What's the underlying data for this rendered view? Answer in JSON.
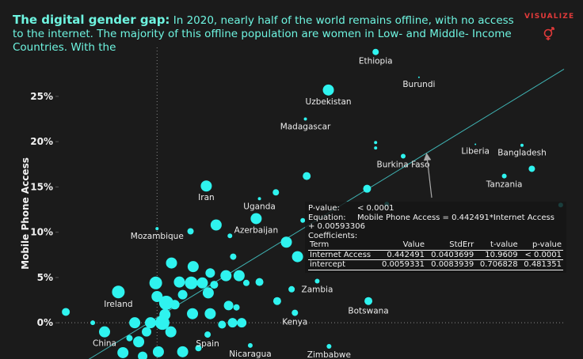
{
  "chart_data": {
    "type": "scatter",
    "title": "The digital gender gap:",
    "subtitle": "In 2020, nearly half of the world remains offline, with no access to the internet. The majority of this offline population are women in Low- and Middle- Income Countries. With the",
    "brand": "VISUALIZE",
    "y_label": "Mobile Phone Access",
    "color": "#2ff3ef",
    "xlim": [
      -15,
      62
    ],
    "ylim": [
      -4,
      30.4
    ],
    "yticks": [
      {
        "value": 0,
        "label": "0%"
      },
      {
        "value": 5,
        "label": "5%"
      },
      {
        "value": 10,
        "label": "10%"
      },
      {
        "value": 15,
        "label": "15%"
      },
      {
        "value": 20,
        "label": "20%"
      },
      {
        "value": 25,
        "label": "25%"
      }
    ],
    "reference_lines": {
      "x": 0,
      "y": 0
    },
    "x": [
      33.3,
      26.1,
      22.6,
      39.9,
      37.5,
      48.5,
      55.6,
      52.9,
      7.5,
      15.6,
      15.1,
      0.0,
      24.4,
      -5.9,
      32.2,
      21.0,
      -8.0,
      7.7,
      14.2,
      26.2,
      -13.9,
      -9.8,
      -3.4,
      -1.0,
      0.8,
      2.1,
      -1.6,
      -2.8,
      -4.2,
      -5.2,
      -2.2,
      0.2,
      3.9,
      6.3,
      -0.2,
      0.0,
      1.4,
      1.2,
      2.7,
      3.9,
      3.4,
      5.2,
      6.9,
      5.5,
      2.2,
      8.1,
      7.8,
      8.7,
      10.5,
      5.4,
      8.1,
      10.9,
      9.9,
      12.1,
      11.5,
      12.9,
      12.5,
      15.6,
      13.6,
      11.6,
      18.3,
      20.5,
      19.7,
      21.4,
      22.2,
      22.8,
      18.1,
      5.1,
      9.0,
      11.1,
      32.0,
      35.0,
      61.5,
      33.3,
      33.3,
      57.1
    ],
    "values": [
      29.9,
      25.7,
      22.5,
      27.1,
      18.4,
      19.7,
      19.6,
      16.2,
      15.1,
      13.7,
      11.5,
      10.4,
      4.6,
      3.4,
      2.4,
      1.1,
      -1.0,
      -1.3,
      -2.5,
      -2.6,
      1.2,
      0.0,
      0.0,
      0.0,
      0.0,
      -1.0,
      -1.0,
      -2.1,
      -1.7,
      -3.3,
      -3.7,
      -3.2,
      -3.2,
      -2.8,
      4.4,
      2.9,
      2.2,
      0.9,
      2.0,
      3.1,
      4.5,
      4.4,
      4.4,
      6.2,
      6.6,
      5.5,
      3.3,
      4.2,
      5.2,
      1.0,
      1.0,
      1.9,
      -0.2,
      1.7,
      0.0,
      0.0,
      5.2,
      4.5,
      4.4,
      7.3,
      2.4,
      3.7,
      8.9,
      7.3,
      11.3,
      16.2,
      14.4,
      10.1,
      10.8,
      9.6,
      14.8,
      13.1,
      13.0,
      19.3,
      19.9,
      17.0
    ],
    "sizes": [
      4,
      7,
      2,
      1,
      3,
      1,
      2,
      3,
      7,
      2,
      7,
      2,
      3,
      8,
      5,
      4,
      7,
      4,
      3,
      3,
      5,
      3,
      7,
      7,
      9,
      7,
      6,
      7,
      4,
      7,
      6,
      7,
      7,
      4,
      8,
      7,
      9,
      7,
      6,
      6,
      7,
      8,
      7,
      7,
      7,
      6,
      7,
      5,
      7,
      7,
      7,
      6,
      5,
      4,
      6,
      6,
      7,
      5,
      4,
      4,
      5,
      4,
      7,
      7,
      3,
      5,
      4,
      4,
      7,
      3,
      5,
      3,
      3,
      2,
      2,
      4
    ],
    "labels": [
      "Ethiopia",
      "Uzbekistan",
      "Madagascar",
      "Burundi",
      "Burkina Faso",
      "Liberia",
      "Bangladesh",
      "Tanzania",
      "Iran",
      "Uganda",
      "Azerbaijan",
      "Mozambique",
      "Zambia",
      "Ireland",
      "Botswana",
      "Kenya",
      "China",
      "Spain",
      "Nicaragua",
      "Zimbabwe",
      null,
      null,
      null,
      null,
      null,
      null,
      null,
      null,
      null,
      null,
      null,
      null,
      null,
      null,
      null,
      null,
      null,
      null,
      null,
      null,
      null,
      null,
      null,
      null,
      null,
      null,
      null,
      null,
      null,
      null,
      null,
      null,
      null,
      null,
      null,
      null,
      null,
      null,
      null,
      null,
      null,
      null,
      null,
      null,
      null,
      null,
      null,
      null,
      null,
      null,
      null,
      null,
      null,
      null,
      null,
      null
    ],
    "trend_line": {
      "x": [
        -11,
        62
      ],
      "y": [
        -4.3,
        28.0
      ]
    },
    "model": {
      "pvalue_label": "P-value:",
      "pvalue": "< 0.0001",
      "equation_label": "Equation:",
      "equation": "Mobile Phone Access = 0.442491*Internet Access + 0.00593306",
      "coefficients_label": "Coefficients:",
      "columns": [
        "Term",
        "Value",
        "StdErr",
        "t-value",
        "p-value"
      ],
      "rows": [
        [
          "Internet Access",
          "0.442491",
          "0.0403699",
          "10.9609",
          "< 0.0001"
        ],
        [
          "intercept",
          "0.0059331",
          "0.0083939",
          "0.706828",
          "0.481351"
        ]
      ]
    }
  }
}
